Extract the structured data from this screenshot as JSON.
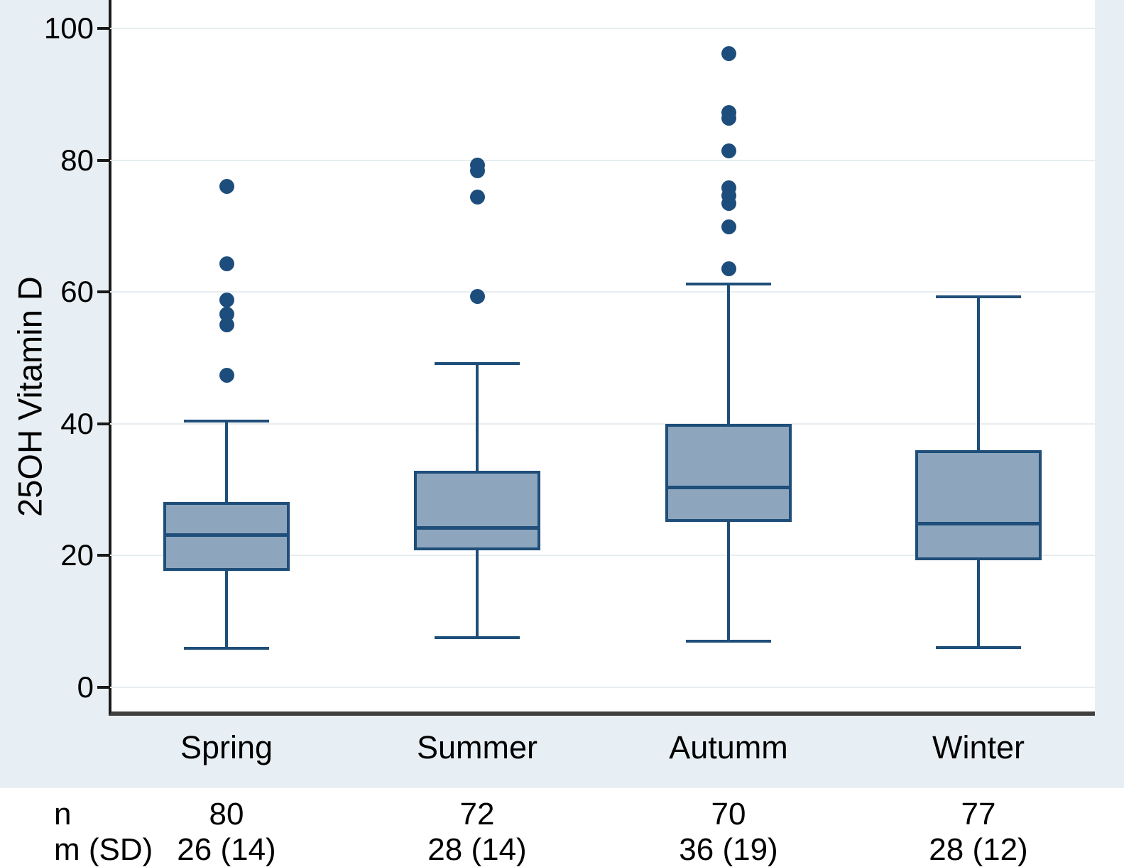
{
  "figure": {
    "ylabel": "25OH Vitamin D"
  },
  "colors": {
    "figure_background": "#e8eff4",
    "plot_background": "#ffffff",
    "gridline": "#e7edf0",
    "box_fill": "#8da6bd",
    "box_stroke": "#1e4e79",
    "outlier_dot": "#1d4d7c",
    "axis_line": "#1a1a1a"
  },
  "chart_data": {
    "type": "boxplot",
    "title": "",
    "xlabel": "",
    "ylabel": "25OH Vitamin D",
    "ylim": [
      0,
      100
    ],
    "y_ticks": [
      0,
      20,
      40,
      60,
      80,
      100
    ],
    "y_tick_labels": [
      "0",
      "20",
      "40",
      "60",
      "80",
      "100"
    ],
    "grid": "horizontal",
    "categories": [
      "Spring",
      "Summer",
      "Autumm",
      "Winter"
    ],
    "series": [
      {
        "name": "Spring",
        "whisker_low": 5.9,
        "q1": 17.6,
        "median": 23.1,
        "q3": 28.1,
        "whisker_high": 40.4,
        "outliers": [
          47.4,
          55.0,
          56.6,
          58.8,
          64.3,
          76.0
        ]
      },
      {
        "name": "Summer",
        "whisker_low": 7.5,
        "q1": 20.8,
        "median": 24.2,
        "q3": 32.9,
        "whisker_high": 49.1,
        "outliers": [
          59.3,
          74.4,
          78.4,
          79.3
        ]
      },
      {
        "name": "Autumm",
        "whisker_low": 7.0,
        "q1": 25.1,
        "median": 30.3,
        "q3": 40.0,
        "whisker_high": 61.2,
        "outliers": [
          63.5,
          69.9,
          73.5,
          74.6,
          75.8,
          81.4,
          86.4,
          87.3,
          96.2
        ]
      },
      {
        "name": "Winter",
        "whisker_low": 6.0,
        "q1": 19.3,
        "median": 24.8,
        "q3": 36.0,
        "whisker_high": 59.3,
        "outliers": []
      }
    ]
  },
  "table": {
    "rows": [
      {
        "label": "n",
        "values": [
          "80",
          "72",
          "70",
          "77"
        ]
      },
      {
        "label": "m (SD)",
        "values": [
          "26 (14)",
          "28 (14)",
          "36 (19)",
          "28 (12)"
        ]
      }
    ]
  }
}
